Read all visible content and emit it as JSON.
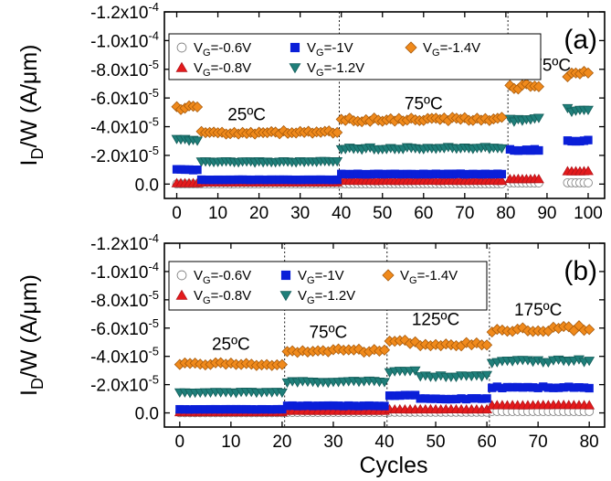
{
  "chart_data": [
    {
      "type": "scatter",
      "panel_label": "(a)",
      "ylabel_main": "I",
      "ylabel_sub": "D",
      "ylabel_rest": "/W (A/μm)",
      "xlabel": "",
      "xlim": [
        -3,
        104
      ],
      "ylim": [
        1e-05,
        -0.00012
      ],
      "xticks": [
        0,
        10,
        20,
        30,
        40,
        50,
        60,
        70,
        80,
        90,
        100
      ],
      "yticks": [
        {
          "value": 0.0,
          "mantissa": "0.0",
          "exponent": ""
        },
        {
          "value": -2e-05,
          "mantissa": "-2.0x10",
          "exponent": "-5"
        },
        {
          "value": -4e-05,
          "mantissa": "-4.0x10",
          "exponent": "-5"
        },
        {
          "value": -6e-05,
          "mantissa": "-6.0x10",
          "exponent": "-5"
        },
        {
          "value": -8e-05,
          "mantissa": "-8.0x10",
          "exponent": "-5"
        },
        {
          "value": -0.0001,
          "mantissa": "-1.0x10",
          "exponent": "-4"
        },
        {
          "value": -0.00012,
          "mantissa": "-1.2x10",
          "exponent": "-4"
        }
      ],
      "dividers": [
        39.5,
        80.5
      ],
      "temperatures": [
        {
          "text": "25ºC",
          "x": 17,
          "y": -4.45e-05
        },
        {
          "text": "75ºC",
          "x": 60,
          "y": -5.2e-05
        },
        {
          "text": "175ºC",
          "x": 90,
          "y": -7.9e-05
        }
      ],
      "legend": [
        {
          "series": 0,
          "prefix": "V",
          "sub": "G",
          "suffix": "=-0.6V"
        },
        {
          "series": 2,
          "prefix": "V",
          "sub": "G",
          "suffix": "=-1V"
        },
        {
          "series": 4,
          "prefix": "V",
          "sub": "G",
          "suffix": "=-1.4V"
        },
        {
          "series": 1,
          "prefix": "V",
          "sub": "G",
          "suffix": "=-0.8V"
        },
        {
          "series": 3,
          "prefix": "V",
          "sub": "G",
          "suffix": "=-1.2V"
        }
      ],
      "segments": [
        {
          "start": 0,
          "end": 5,
          "values": [
            -1e-07,
            -6e-07,
            -1e-05,
            -3.1e-05,
            -5.3e-05
          ]
        },
        {
          "start": 6,
          "end": 39,
          "values": [
            -1e-07,
            -1.2e-06,
            -3e-06,
            -1.55e-05,
            -3.6e-05
          ]
        },
        {
          "start": 40,
          "end": 79,
          "values": [
            -2e-07,
            -2.3e-06,
            -7e-06,
            -2.5e-05,
            -4.5e-05
          ]
        },
        {
          "start": 81,
          "end": 88,
          "values": [
            -8e-07,
            -3.5e-06,
            -2.4e-05,
            -4.5e-05,
            -6.8e-05
          ]
        },
        {
          "start": 95,
          "end": 100,
          "values": [
            -9e-07,
            -9e-06,
            -3e-05,
            -5.2e-05,
            -7.6e-05
          ]
        }
      ]
    },
    {
      "type": "scatter",
      "panel_label": "(b)",
      "ylabel_main": "I",
      "ylabel_sub": "D",
      "ylabel_rest": "/W (A/μm)",
      "xlabel": "Cycles",
      "xlim": [
        -3,
        83
      ],
      "ylim": [
        1e-05,
        -0.00012
      ],
      "xticks": [
        0,
        10,
        20,
        30,
        40,
        50,
        60,
        70,
        80
      ],
      "yticks": [
        {
          "value": 0.0,
          "mantissa": "0.0",
          "exponent": ""
        },
        {
          "value": -2e-05,
          "mantissa": "-2.0x10",
          "exponent": "-5"
        },
        {
          "value": -4e-05,
          "mantissa": "-4.0x10",
          "exponent": "-5"
        },
        {
          "value": -6e-05,
          "mantissa": "-6.0x10",
          "exponent": "-5"
        },
        {
          "value": -8e-05,
          "mantissa": "-8.0x10",
          "exponent": "-5"
        },
        {
          "value": -0.0001,
          "mantissa": "-1.0x10",
          "exponent": "-4"
        },
        {
          "value": -0.00012,
          "mantissa": "-1.2x10",
          "exponent": "-4"
        }
      ],
      "dividers": [
        20.5,
        40.5,
        60.5
      ],
      "temperatures": [
        {
          "text": "25ºC",
          "x": 10,
          "y": -4.45e-05
        },
        {
          "text": "75ºC",
          "x": 29,
          "y": -5.3e-05
        },
        {
          "text": "125ºC",
          "x": 50,
          "y": -6.2e-05
        },
        {
          "text": "175ºC",
          "x": 70,
          "y": -6.9e-05
        }
      ],
      "legend": [
        {
          "series": 0,
          "prefix": "V",
          "sub": "G",
          "suffix": "=-0.6V"
        },
        {
          "series": 2,
          "prefix": "V",
          "sub": "G",
          "suffix": "=-1V"
        },
        {
          "series": 4,
          "prefix": "V",
          "sub": "G",
          "suffix": "=-1.4V"
        },
        {
          "series": 1,
          "prefix": "V",
          "sub": "G",
          "suffix": "=-0.8V"
        },
        {
          "series": 3,
          "prefix": "V",
          "sub": "G",
          "suffix": "=-1.2V"
        }
      ],
      "segments": [
        {
          "start": 0,
          "end": 20,
          "values": [
            -1e-07,
            -5e-07,
            -2.5e-06,
            -1.45e-05,
            -3.45e-05
          ]
        },
        {
          "start": 21,
          "end": 40,
          "values": [
            -3e-07,
            -1.5e-06,
            -5e-06,
            -2.2e-05,
            -4.4e-05
          ]
        },
        {
          "start": 41,
          "end": 46,
          "values": [
            -5e-07,
            -2.5e-06,
            -1.25e-05,
            -2.9e-05,
            -5e-05
          ]
        },
        {
          "start": 47,
          "end": 60,
          "values": [
            -5e-07,
            -2.5e-06,
            -1e-05,
            -2.6e-05,
            -4.85e-05
          ]
        },
        {
          "start": 61,
          "end": 80,
          "values": [
            -1e-06,
            -5.5e-06,
            -1.8e-05,
            -3.65e-05,
            -5.95e-05
          ]
        }
      ]
    }
  ],
  "series_style": [
    {
      "marker": "circle",
      "fill": "#ffffff",
      "stroke": "#7a7a7a"
    },
    {
      "marker": "triangle-up",
      "fill": "#e41a1c",
      "stroke": "#b3141a"
    },
    {
      "marker": "square",
      "fill": "#0a1fd8",
      "stroke": "#0a1fd8"
    },
    {
      "marker": "triangle-down",
      "fill": "#1f7f7a",
      "stroke": "#145e5a"
    },
    {
      "marker": "diamond",
      "fill": "#f08a1c",
      "stroke": "#a85a0a"
    }
  ]
}
